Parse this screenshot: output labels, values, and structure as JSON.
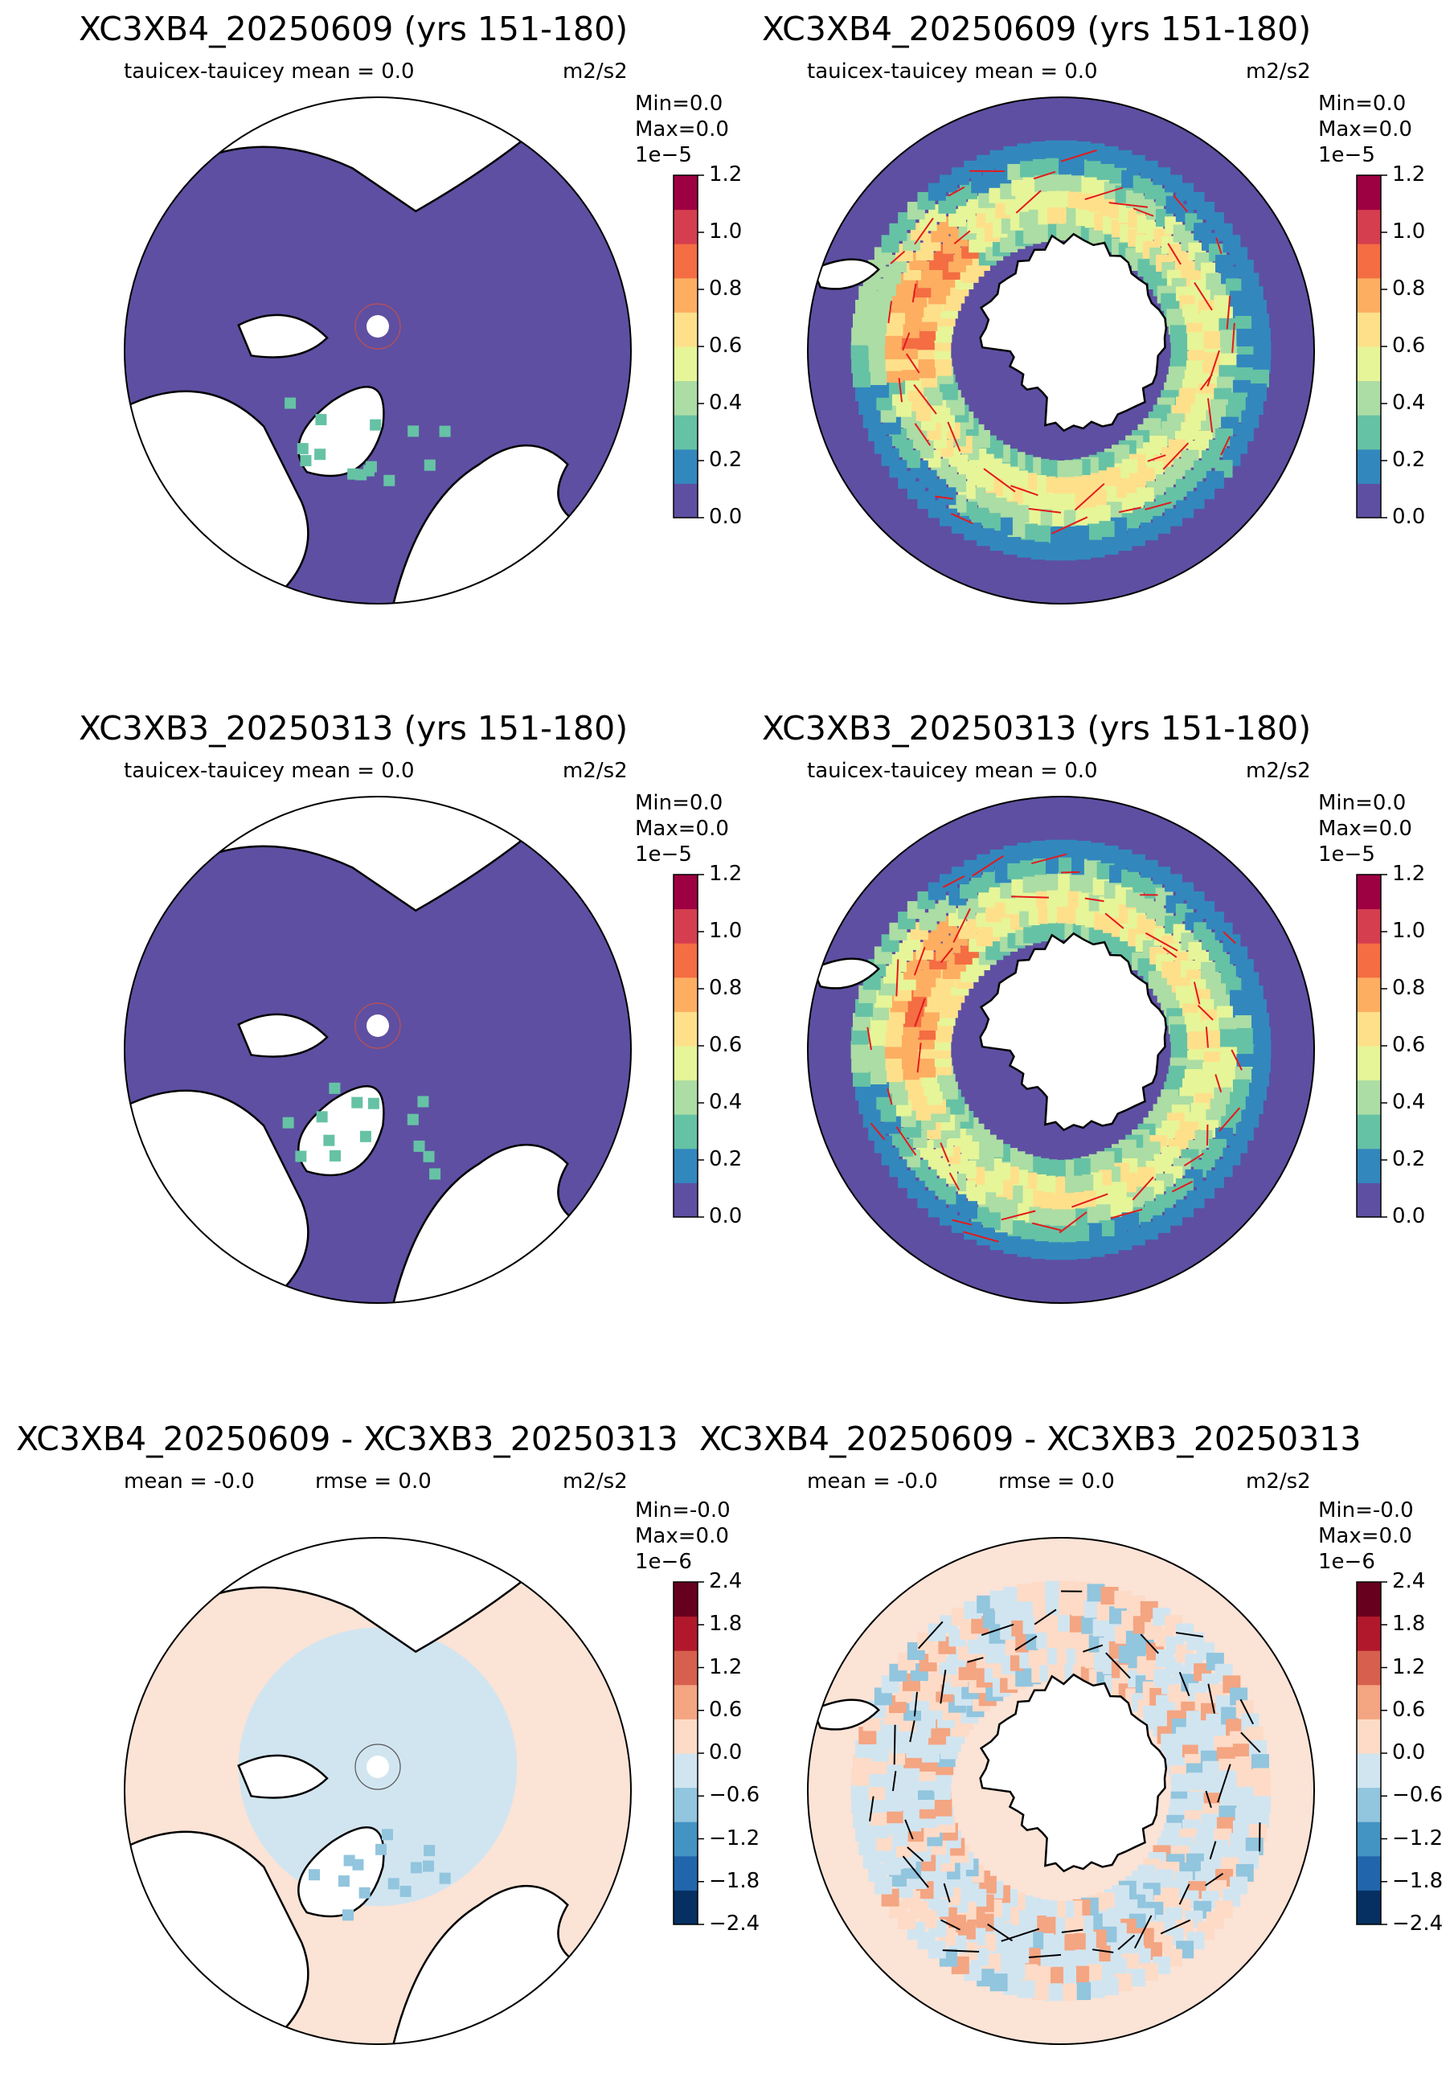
{
  "panels": [
    {
      "title": "XC3XB4_20250609 (yrs 151-180)",
      "left_text": "tauicex-tauicey  mean = 0.0",
      "mid_text": "",
      "units": "m2/s2",
      "min_label": "Min=0.0",
      "max_label": " Max=0.0",
      "cbar": {
        "scale_label": "1e−5",
        "ticks": [
          "0.0",
          "0.2",
          "0.4",
          "0.6",
          "0.8",
          "1.0",
          "1.2"
        ],
        "colors": [
          "#5e4fa2",
          "#3288bd",
          "#66c2a5",
          "#abdda4",
          "#e6f598",
          "#fee08b",
          "#fdae61",
          "#f46d43",
          "#d53e4f",
          "#9e0142"
        ]
      },
      "hemisphere": "north",
      "map_bg": "#5e4fa2"
    },
    {
      "title": "XC3XB4_20250609 (yrs 151-180)",
      "left_text": "tauicex-tauicey  mean = 0.0",
      "mid_text": "",
      "units": "m2/s2",
      "min_label": "Min=0.0",
      "max_label": " Max=0.0",
      "cbar": {
        "scale_label": "1e−5",
        "ticks": [
          "0.0",
          "0.2",
          "0.4",
          "0.6",
          "0.8",
          "1.0",
          "1.2"
        ],
        "colors": [
          "#5e4fa2",
          "#3288bd",
          "#66c2a5",
          "#abdda4",
          "#e6f598",
          "#fee08b",
          "#fdae61",
          "#f46d43",
          "#d53e4f",
          "#9e0142"
        ]
      },
      "hemisphere": "south",
      "map_bg": "#5e4fa2"
    },
    {
      "title": "XC3XB3_20250313 (yrs 151-180)",
      "left_text": "tauicex-tauicey  mean = 0.0",
      "mid_text": "",
      "units": "m2/s2",
      "min_label": "Min=0.0",
      "max_label": " Max=0.0",
      "cbar": {
        "scale_label": "1e−5",
        "ticks": [
          "0.0",
          "0.2",
          "0.4",
          "0.6",
          "0.8",
          "1.0",
          "1.2"
        ],
        "colors": [
          "#5e4fa2",
          "#3288bd",
          "#66c2a5",
          "#abdda4",
          "#e6f598",
          "#fee08b",
          "#fdae61",
          "#f46d43",
          "#d53e4f",
          "#9e0142"
        ]
      },
      "hemisphere": "north",
      "map_bg": "#5e4fa2"
    },
    {
      "title": "XC3XB3_20250313 (yrs 151-180)",
      "left_text": "tauicex-tauicey  mean = 0.0",
      "mid_text": "",
      "units": "m2/s2",
      "min_label": "Min=0.0",
      "max_label": " Max=0.0",
      "cbar": {
        "scale_label": "1e−5",
        "ticks": [
          "0.0",
          "0.2",
          "0.4",
          "0.6",
          "0.8",
          "1.0",
          "1.2"
        ],
        "colors": [
          "#5e4fa2",
          "#3288bd",
          "#66c2a5",
          "#abdda4",
          "#e6f598",
          "#fee08b",
          "#fdae61",
          "#f46d43",
          "#d53e4f",
          "#9e0142"
        ]
      },
      "hemisphere": "south",
      "map_bg": "#5e4fa2"
    },
    {
      "title": "XC3XB4_20250609 - XC3XB3_20250313",
      "left_text": "mean = -0.0",
      "mid_text": "rmse = 0.0",
      "units": "m2/s2",
      "min_label": "Min=-0.0",
      "max_label": "Max=0.0",
      "cbar": {
        "scale_label": "1e−6",
        "ticks": [
          "−2.4",
          "−1.8",
          "−1.2",
          "−0.6",
          "0.0",
          "0.6",
          "1.2",
          "1.8",
          "2.4"
        ],
        "colors": [
          "#053061",
          "#2166ac",
          "#4393c3",
          "#92c5de",
          "#d1e5f0",
          "#fddbc7",
          "#f4a582",
          "#d6604d",
          "#b2182b",
          "#67001f"
        ]
      },
      "hemisphere": "north",
      "map_bg": "#fbe3d6"
    },
    {
      "title": "XC3XB4_20250609 - XC3XB3_20250313",
      "left_text": "mean = -0.0",
      "mid_text": "rmse = 0.0",
      "units": "m2/s2",
      "min_label": "Min=-0.0",
      "max_label": "Max=0.0",
      "cbar": {
        "scale_label": "1e−6",
        "ticks": [
          "−2.4",
          "−1.8",
          "−1.2",
          "−0.6",
          "0.0",
          "0.6",
          "1.2",
          "1.8",
          "2.4"
        ],
        "colors": [
          "#053061",
          "#2166ac",
          "#4393c3",
          "#92c5de",
          "#d1e5f0",
          "#fddbc7",
          "#f4a582",
          "#d6604d",
          "#b2182b",
          "#67001f"
        ]
      },
      "hemisphere": "south",
      "map_bg": "#fbe3d6"
    }
  ]
}
